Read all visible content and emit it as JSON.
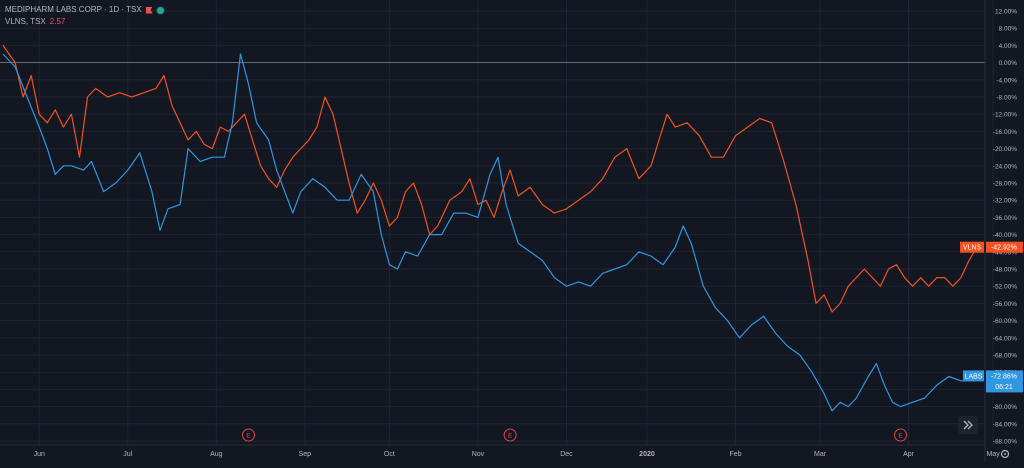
{
  "legend": {
    "main_title": "MEDIPHARM LABS CORP · 1D · TSX",
    "compare_symbol": "VLNS, TSX",
    "compare_value": "2.57"
  },
  "icons": {
    "flag": "flag-icon",
    "status": "live-status-dot-icon",
    "scroll": "scroll-to-realtime-icon",
    "settings": "settings-gear-icon"
  },
  "earnings_marker": "E",
  "labels": {
    "vlns_tag": "VLNS",
    "vlns_value": "-42.92%",
    "labs_tag": "LABS",
    "labs_value": "-72.86%",
    "labs_countdown": "06:21"
  },
  "colors": {
    "background": "#131722",
    "labs": "#2f96e0",
    "vlns": "#f2521f",
    "grid": "#1f2433",
    "axis_text": "#b2b5be"
  },
  "chart_data": {
    "type": "line",
    "ylim": [
      -88,
      13
    ],
    "y_ticks": [
      "12.00%",
      "8.00%",
      "4.00%",
      "0.00%",
      "-4.00%",
      "-8.00%",
      "-12.00%",
      "-16.00%",
      "-20.00%",
      "-24.00%",
      "-28.00%",
      "-32.00%",
      "-36.00%",
      "-40.00%",
      "-44.00%",
      "-48.00%",
      "-52.00%",
      "-56.00%",
      "-60.00%",
      "-64.00%",
      "-68.00%",
      "-72.00%",
      "-76.00%",
      "-80.00%",
      "-84.00%",
      "-88.00%"
    ],
    "y_tick_values": [
      12,
      8,
      4,
      0,
      -4,
      -8,
      -12,
      -16,
      -20,
      -24,
      -28,
      -32,
      -36,
      -40,
      -44,
      -48,
      -52,
      -56,
      -60,
      -64,
      -68,
      -72,
      -76,
      -80,
      -84,
      -88
    ],
    "x_index_range": [
      0,
      242
    ],
    "x_ticks": [
      {
        "label": "Jun",
        "i": 9
      },
      {
        "label": "Jul",
        "i": 31
      },
      {
        "label": "Aug",
        "i": 53
      },
      {
        "label": "Sep",
        "i": 75
      },
      {
        "label": "Oct",
        "i": 96
      },
      {
        "label": "Nov",
        "i": 118
      },
      {
        "label": "Dec",
        "i": 140
      },
      {
        "label": "2020",
        "i": 160
      },
      {
        "label": "Feb",
        "i": 182
      },
      {
        "label": "Mar",
        "i": 203
      },
      {
        "label": "Apr",
        "i": 225
      },
      {
        "label": "May",
        "i": 246
      }
    ],
    "earnings_i": [
      61,
      126,
      223
    ],
    "series": [
      {
        "name": "LABS",
        "points": [
          [
            0,
            2
          ],
          [
            3,
            -1
          ],
          [
            6,
            -8
          ],
          [
            9,
            -15
          ],
          [
            11,
            -20
          ],
          [
            13,
            -26
          ],
          [
            15,
            -24
          ],
          [
            17,
            -24
          ],
          [
            20,
            -25
          ],
          [
            22,
            -23
          ],
          [
            25,
            -30
          ],
          [
            28,
            -28
          ],
          [
            31,
            -25
          ],
          [
            34,
            -21
          ],
          [
            37,
            -30
          ],
          [
            39,
            -39
          ],
          [
            41,
            -34
          ],
          [
            44,
            -33
          ],
          [
            46,
            -20
          ],
          [
            49,
            -23
          ],
          [
            52,
            -22
          ],
          [
            55,
            -22
          ],
          [
            57,
            -14
          ],
          [
            59,
            2
          ],
          [
            61,
            -5
          ],
          [
            63,
            -14
          ],
          [
            66,
            -18
          ],
          [
            68,
            -25
          ],
          [
            70,
            -30
          ],
          [
            72,
            -35
          ],
          [
            74,
            -30
          ],
          [
            77,
            -27
          ],
          [
            80,
            -29
          ],
          [
            83,
            -32
          ],
          [
            86,
            -32
          ],
          [
            89,
            -26
          ],
          [
            92,
            -30
          ],
          [
            94,
            -40
          ],
          [
            96,
            -47
          ],
          [
            98,
            -48
          ],
          [
            100,
            -44
          ],
          [
            103,
            -45
          ],
          [
            106,
            -40
          ],
          [
            109,
            -40
          ],
          [
            112,
            -35
          ],
          [
            115,
            -35
          ],
          [
            118,
            -36
          ],
          [
            121,
            -26
          ],
          [
            123,
            -22
          ],
          [
            125,
            -33
          ],
          [
            128,
            -42
          ],
          [
            131,
            -44
          ],
          [
            134,
            -46
          ],
          [
            137,
            -50
          ],
          [
            140,
            -52
          ],
          [
            143,
            -51
          ],
          [
            146,
            -52
          ],
          [
            149,
            -49
          ],
          [
            152,
            -48
          ],
          [
            155,
            -47
          ],
          [
            158,
            -44
          ],
          [
            161,
            -45
          ],
          [
            164,
            -47
          ],
          [
            167,
            -43
          ],
          [
            169,
            -38
          ],
          [
            171,
            -42
          ],
          [
            174,
            -52
          ],
          [
            177,
            -57
          ],
          [
            180,
            -60
          ],
          [
            183,
            -64
          ],
          [
            186,
            -61
          ],
          [
            189,
            -59
          ],
          [
            192,
            -63
          ],
          [
            195,
            -66
          ],
          [
            198,
            -68
          ],
          [
            201,
            -72
          ],
          [
            204,
            -77
          ],
          [
            206,
            -81
          ],
          [
            208,
            -79
          ],
          [
            210,
            -80
          ],
          [
            212,
            -78
          ],
          [
            215,
            -73
          ],
          [
            217,
            -70
          ],
          [
            219,
            -75
          ],
          [
            221,
            -79
          ],
          [
            223,
            -80
          ],
          [
            226,
            -79
          ],
          [
            229,
            -78
          ],
          [
            232,
            -75
          ],
          [
            235,
            -73
          ],
          [
            238,
            -74
          ],
          [
            241,
            -74
          ],
          [
            242,
            -72.86
          ]
        ]
      },
      {
        "name": "VLNS",
        "points": [
          [
            0,
            4
          ],
          [
            3,
            0
          ],
          [
            5,
            -8
          ],
          [
            7,
            -3
          ],
          [
            9,
            -12
          ],
          [
            11,
            -14
          ],
          [
            13,
            -11
          ],
          [
            15,
            -15
          ],
          [
            17,
            -12
          ],
          [
            19,
            -22
          ],
          [
            21,
            -8
          ],
          [
            23,
            -6
          ],
          [
            26,
            -8
          ],
          [
            29,
            -7
          ],
          [
            32,
            -8
          ],
          [
            35,
            -7
          ],
          [
            38,
            -6
          ],
          [
            40,
            -3
          ],
          [
            42,
            -10
          ],
          [
            44,
            -14
          ],
          [
            46,
            -18
          ],
          [
            48,
            -16
          ],
          [
            50,
            -19
          ],
          [
            52,
            -20
          ],
          [
            54,
            -15
          ],
          [
            56,
            -16
          ],
          [
            58,
            -14
          ],
          [
            60,
            -12
          ],
          [
            62,
            -18
          ],
          [
            64,
            -24
          ],
          [
            66,
            -27
          ],
          [
            68,
            -29
          ],
          [
            70,
            -25
          ],
          [
            72,
            -22
          ],
          [
            74,
            -20
          ],
          [
            76,
            -18
          ],
          [
            78,
            -15
          ],
          [
            80,
            -8
          ],
          [
            82,
            -12
          ],
          [
            84,
            -20
          ],
          [
            86,
            -28
          ],
          [
            88,
            -35
          ],
          [
            90,
            -32
          ],
          [
            92,
            -28
          ],
          [
            94,
            -32
          ],
          [
            96,
            -38
          ],
          [
            98,
            -36
          ],
          [
            100,
            -30
          ],
          [
            102,
            -28
          ],
          [
            104,
            -33
          ],
          [
            106,
            -40
          ],
          [
            108,
            -38
          ],
          [
            111,
            -32
          ],
          [
            114,
            -30
          ],
          [
            116,
            -27
          ],
          [
            118,
            -33
          ],
          [
            120,
            -32
          ],
          [
            122,
            -36
          ],
          [
            124,
            -30
          ],
          [
            126,
            -25
          ],
          [
            128,
            -31
          ],
          [
            131,
            -29
          ],
          [
            134,
            -33
          ],
          [
            137,
            -35
          ],
          [
            140,
            -34
          ],
          [
            143,
            -32
          ],
          [
            146,
            -30
          ],
          [
            149,
            -27
          ],
          [
            152,
            -22
          ],
          [
            155,
            -20
          ],
          [
            158,
            -27
          ],
          [
            161,
            -24
          ],
          [
            163,
            -18
          ],
          [
            165,
            -12
          ],
          [
            167,
            -15
          ],
          [
            170,
            -14
          ],
          [
            173,
            -17
          ],
          [
            176,
            -22
          ],
          [
            179,
            -22
          ],
          [
            182,
            -17
          ],
          [
            185,
            -15
          ],
          [
            188,
            -13
          ],
          [
            191,
            -14
          ],
          [
            194,
            -23
          ],
          [
            197,
            -33
          ],
          [
            200,
            -46
          ],
          [
            202,
            -56
          ],
          [
            204,
            -54
          ],
          [
            206,
            -58
          ],
          [
            208,
            -56
          ],
          [
            210,
            -52
          ],
          [
            212,
            -50
          ],
          [
            214,
            -48
          ],
          [
            216,
            -50
          ],
          [
            218,
            -52
          ],
          [
            220,
            -48
          ],
          [
            222,
            -47
          ],
          [
            224,
            -50
          ],
          [
            226,
            -52
          ],
          [
            228,
            -50
          ],
          [
            230,
            -52
          ],
          [
            232,
            -50
          ],
          [
            234,
            -50
          ],
          [
            236,
            -52
          ],
          [
            238,
            -50
          ],
          [
            240,
            -46
          ],
          [
            242,
            -42.92
          ]
        ]
      }
    ]
  }
}
